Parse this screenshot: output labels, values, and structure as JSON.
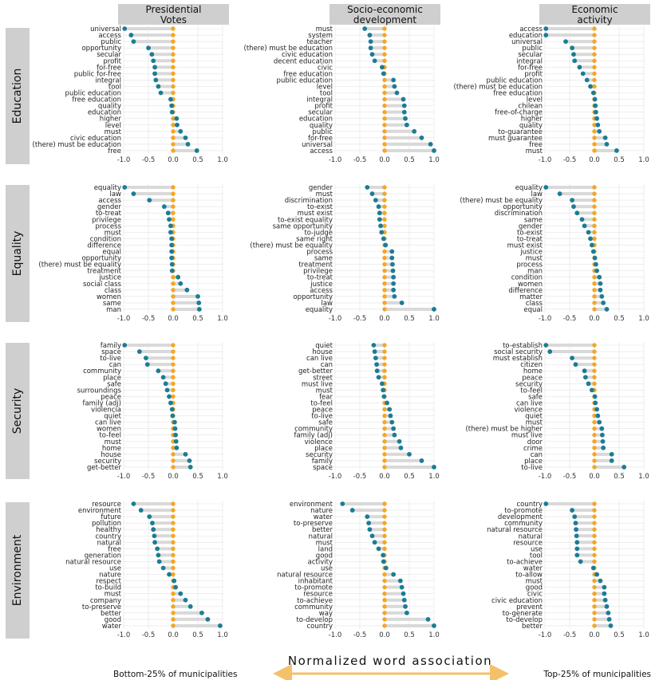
{
  "chart_data": {
    "type": "dot-range",
    "columns": [
      "Presidential\nVotes",
      "Socio-economic\ndevelopment",
      "Economic\nactivity"
    ],
    "rows": [
      "Education",
      "Equality",
      "Security",
      "Environment"
    ],
    "xlim": [
      -1.0,
      1.0
    ],
    "xticks": [
      "-1.0",
      "-0.5",
      "0.0",
      "0.5",
      "1.0"
    ],
    "xlabel": "Normalized word association",
    "left_label": "Bottom-25% of municipalities",
    "right_label": "Top-25% of municipalities",
    "colors": {
      "bottom": "#f5a623",
      "top": "#1b7c96",
      "segment": "#d9d9d9",
      "strip": "#cfcfcf",
      "arrow": "#f5c06a"
    },
    "panels": [
      [
        {
          "words": [
            "universal",
            "access",
            "public",
            "opportunity",
            "secular",
            "profit",
            "for-free",
            "public for-free",
            "integral",
            "tool",
            "public education",
            "free education",
            "quality",
            "education",
            "higher",
            "level",
            "must",
            "civic education",
            "(there) must be education",
            "free"
          ],
          "values": [
            -0.98,
            -0.85,
            -0.8,
            -0.5,
            -0.43,
            -0.4,
            -0.37,
            -0.37,
            -0.35,
            -0.3,
            -0.25,
            -0.05,
            -0.03,
            -0.02,
            0.07,
            0.08,
            0.15,
            0.25,
            0.3,
            0.48
          ]
        },
        {
          "words": [
            "must",
            "system",
            "teacher",
            "(there) must be education",
            "civic education",
            "decent education",
            "civic",
            "free education",
            "public education",
            "level",
            "tool",
            "integral",
            "profit",
            "secular",
            "education",
            "quality",
            "public",
            "for-free",
            "universal",
            "access"
          ],
          "values": [
            -0.4,
            -0.3,
            -0.28,
            -0.28,
            -0.25,
            -0.2,
            -0.05,
            -0.02,
            0.18,
            0.2,
            0.25,
            0.38,
            0.4,
            0.4,
            0.42,
            0.45,
            0.6,
            0.75,
            0.93,
            1.0
          ]
        },
        {
          "words": [
            "access",
            "education",
            "universal",
            "public",
            "secular",
            "integral",
            "for-free",
            "profit",
            "public education",
            "(there) must be education",
            "free education",
            "level",
            "chilean",
            "free-of-charge",
            "higher",
            "quality",
            "to-guarantee",
            "must guarantee",
            "free",
            "must"
          ],
          "values": [
            -0.98,
            -0.98,
            -0.58,
            -0.45,
            -0.42,
            -0.4,
            -0.3,
            -0.23,
            -0.15,
            -0.08,
            -0.02,
            0.01,
            0.02,
            0.03,
            0.05,
            0.07,
            0.1,
            0.22,
            0.25,
            0.45
          ]
        }
      ],
      [
        {
          "words": [
            "equality",
            "law",
            "access",
            "gender",
            "to-treat",
            "privilege",
            "process",
            "must",
            "condition",
            "difference",
            "equal",
            "opportunity",
            "(there) must be equality",
            "treatment",
            "justice",
            "social class",
            "class",
            "women",
            "same",
            "man"
          ],
          "values": [
            -0.98,
            -0.8,
            -0.48,
            -0.18,
            -0.1,
            -0.08,
            -0.05,
            -0.05,
            -0.03,
            -0.03,
            -0.03,
            -0.03,
            -0.02,
            -0.02,
            0.1,
            0.15,
            0.28,
            0.5,
            0.52,
            0.53
          ]
        },
        {
          "words": [
            "gender",
            "must",
            "discrimination",
            "to-exist",
            "must exist",
            "to-exist equality",
            "same opportunity",
            "to-judge",
            "same right",
            "(there) must be equality",
            "process",
            "same",
            "treatment",
            "privilege",
            "to-treat",
            "justice",
            "access",
            "opportunity",
            "law",
            "equality"
          ],
          "values": [
            -0.35,
            -0.25,
            -0.18,
            -0.12,
            -0.1,
            -0.1,
            -0.08,
            -0.06,
            -0.02,
            0.02,
            0.15,
            0.15,
            0.16,
            0.17,
            0.18,
            0.18,
            0.18,
            0.2,
            0.35,
            1.0
          ]
        },
        {
          "words": [
            "equality",
            "law",
            "(there) must be equality",
            "opportunity",
            "discrimination",
            "same",
            "gender",
            "to-exist",
            "to-treat",
            "must exist",
            "justice",
            "must",
            "process",
            "man",
            "condition",
            "women",
            "difference",
            "matter",
            "class",
            "equal"
          ],
          "values": [
            -0.98,
            -0.7,
            -0.45,
            -0.42,
            -0.35,
            -0.25,
            -0.2,
            -0.12,
            -0.08,
            -0.05,
            -0.02,
            0.01,
            0.03,
            0.05,
            0.1,
            0.12,
            0.12,
            0.15,
            0.18,
            0.25
          ]
        }
      ],
      [
        {
          "words": [
            "family",
            "space",
            "to-live",
            "can",
            "community",
            "place",
            "safe",
            "surroundings",
            "peace",
            "family (adj)",
            "violencia",
            "quiet",
            "can live",
            "women",
            "to-feel",
            "must",
            "home",
            "house",
            "security",
            "get-better"
          ],
          "values": [
            -0.98,
            -0.68,
            -0.55,
            -0.52,
            -0.3,
            -0.2,
            -0.15,
            -0.12,
            -0.08,
            -0.05,
            -0.02,
            -0.01,
            0.03,
            0.04,
            0.05,
            0.06,
            0.07,
            0.25,
            0.33,
            0.35
          ]
        },
        {
          "words": [
            "quiet",
            "house",
            "can live",
            "can",
            "get-better",
            "street",
            "must live",
            "must",
            "fear",
            "to-feel",
            "peace",
            "to-live",
            "safe",
            "community",
            "family (adj)",
            "violence",
            "place",
            "security",
            "family",
            "space"
          ],
          "values": [
            -0.22,
            -0.2,
            -0.18,
            -0.16,
            -0.15,
            -0.12,
            -0.05,
            -0.03,
            -0.01,
            0.05,
            0.1,
            0.12,
            0.15,
            0.18,
            0.2,
            0.3,
            0.33,
            0.5,
            0.75,
            1.0
          ]
        },
        {
          "words": [
            "to-establish",
            "social security",
            "must establish",
            "citizen",
            "home",
            "peace",
            "security",
            "to-feel",
            "safe",
            "can live",
            "violence",
            "quiet",
            "must",
            "(there) must be higher",
            "must live",
            "door",
            "crime",
            "can",
            "place",
            "to-live"
          ],
          "values": [
            -0.98,
            -0.9,
            -0.45,
            -0.38,
            -0.2,
            -0.18,
            -0.12,
            -0.05,
            0.01,
            0.02,
            0.05,
            0.07,
            0.1,
            0.15,
            0.16,
            0.17,
            0.18,
            0.35,
            0.35,
            0.6
          ]
        }
      ],
      [
        {
          "words": [
            "resource",
            "environment",
            "future",
            "pollution",
            "healthy",
            "country",
            "natural",
            "free",
            "generation",
            "natural resource",
            "use",
            "nature",
            "respect",
            "to-build",
            "must",
            "company",
            "to-preserve",
            "better",
            "good",
            "water"
          ],
          "values": [
            -0.8,
            -0.65,
            -0.48,
            -0.42,
            -0.4,
            -0.38,
            -0.37,
            -0.32,
            -0.3,
            -0.28,
            -0.2,
            -0.08,
            0.02,
            0.05,
            0.15,
            0.25,
            0.35,
            0.58,
            0.7,
            0.95
          ]
        },
        {
          "words": [
            "environment",
            "nature",
            "water",
            "to-preserve",
            "better",
            "natural",
            "must",
            "land",
            "good",
            "activity",
            "use",
            "natural resource",
            "inhabitant",
            "to-promote",
            "resource",
            "to-achieve",
            "community",
            "way",
            "to-develop",
            "country"
          ],
          "values": [
            -0.85,
            -0.65,
            -0.35,
            -0.32,
            -0.3,
            -0.25,
            -0.2,
            -0.12,
            -0.03,
            -0.02,
            0.03,
            0.18,
            0.32,
            0.35,
            0.38,
            0.4,
            0.42,
            0.45,
            0.88,
            1.0
          ]
        },
        {
          "words": [
            "country",
            "to-promote",
            "development",
            "community",
            "natural resource",
            "natural",
            "resource",
            "use",
            "tool",
            "to-achieve",
            "water",
            "to-allow",
            "must",
            "good",
            "civic",
            "civic education",
            "prevent",
            "to-generate",
            "to-develop",
            "better"
          ],
          "values": [
            -0.98,
            -0.45,
            -0.4,
            -0.38,
            -0.37,
            -0.36,
            -0.35,
            -0.35,
            -0.35,
            -0.28,
            -0.02,
            0.05,
            0.12,
            0.2,
            0.2,
            0.22,
            0.25,
            0.28,
            0.3,
            0.33
          ]
        }
      ]
    ]
  }
}
